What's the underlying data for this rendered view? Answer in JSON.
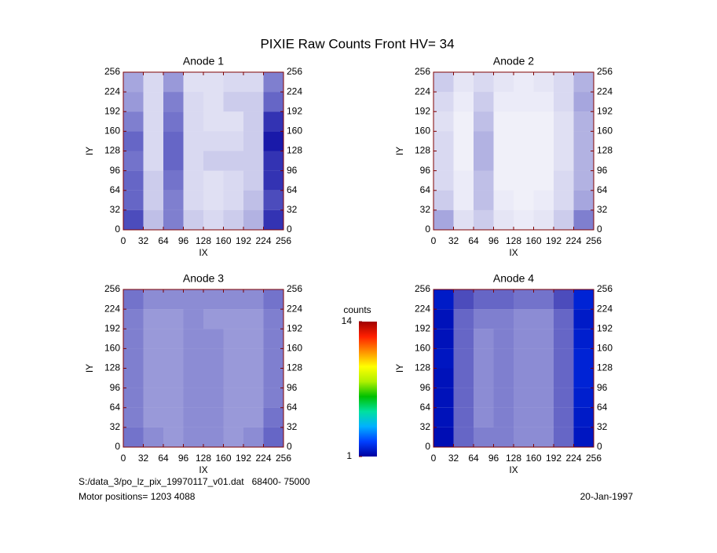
{
  "title": "PIXIE Raw Counts Front HV= 34",
  "chart_data": [
    {
      "type": "heatmap",
      "title": "Anode 1",
      "xlabel": "IX",
      "ylabel": "IY",
      "xlim": [
        0,
        256
      ],
      "ylim": [
        0,
        256
      ],
      "xticks": [
        0,
        32,
        64,
        96,
        128,
        160,
        192,
        224,
        256
      ],
      "yticks": [
        0,
        32,
        64,
        96,
        128,
        160,
        192,
        224,
        256
      ],
      "x_bins": [
        0,
        32,
        64,
        96,
        128,
        160,
        192,
        224,
        256
      ],
      "y_bins": [
        0,
        32,
        64,
        96,
        128,
        160,
        192,
        224,
        256
      ],
      "values": [
        [
          0.7,
          0.25,
          0.5,
          0.2,
          0.15,
          0.2,
          0.3,
          0.8
        ],
        [
          0.6,
          0.2,
          0.5,
          0.15,
          0.12,
          0.15,
          0.25,
          0.7
        ],
        [
          0.6,
          0.2,
          0.55,
          0.15,
          0.12,
          0.15,
          0.2,
          0.8
        ],
        [
          0.55,
          0.15,
          0.6,
          0.15,
          0.2,
          0.2,
          0.2,
          0.8
        ],
        [
          0.6,
          0.15,
          0.6,
          0.15,
          0.15,
          0.15,
          0.2,
          0.9
        ],
        [
          0.5,
          0.15,
          0.55,
          0.15,
          0.12,
          0.12,
          0.2,
          0.8
        ],
        [
          0.4,
          0.15,
          0.5,
          0.15,
          0.12,
          0.2,
          0.2,
          0.6
        ],
        [
          0.35,
          0.15,
          0.4,
          0.12,
          0.12,
          0.15,
          0.15,
          0.5
        ]
      ]
    },
    {
      "type": "heatmap",
      "title": "Anode 2",
      "xlabel": "IX",
      "ylabel": "IY",
      "xlim": [
        0,
        256
      ],
      "ylim": [
        0,
        256
      ],
      "xticks": [
        0,
        32,
        64,
        96,
        128,
        160,
        192,
        224,
        256
      ],
      "yticks": [
        0,
        32,
        64,
        96,
        128,
        160,
        192,
        224,
        256
      ],
      "x_bins": [
        0,
        32,
        64,
        96,
        128,
        160,
        192,
        224,
        256
      ],
      "y_bins": [
        0,
        32,
        64,
        96,
        128,
        160,
        192,
        224,
        256
      ],
      "values": [
        [
          0.35,
          0.12,
          0.2,
          0.1,
          0.08,
          0.1,
          0.2,
          0.5
        ],
        [
          0.2,
          0.08,
          0.25,
          0.08,
          0.06,
          0.08,
          0.15,
          0.35
        ],
        [
          0.15,
          0.08,
          0.25,
          0.06,
          0.06,
          0.06,
          0.15,
          0.3
        ],
        [
          0.15,
          0.06,
          0.3,
          0.06,
          0.06,
          0.06,
          0.12,
          0.3
        ],
        [
          0.15,
          0.06,
          0.3,
          0.06,
          0.06,
          0.06,
          0.12,
          0.3
        ],
        [
          0.12,
          0.06,
          0.25,
          0.06,
          0.06,
          0.06,
          0.12,
          0.3
        ],
        [
          0.15,
          0.08,
          0.2,
          0.08,
          0.08,
          0.08,
          0.15,
          0.35
        ],
        [
          0.2,
          0.1,
          0.15,
          0.1,
          0.08,
          0.1,
          0.15,
          0.3
        ]
      ]
    },
    {
      "type": "heatmap",
      "title": "Anode 3",
      "xlabel": "IX",
      "ylabel": "IY",
      "xlim": [
        0,
        256
      ],
      "ylim": [
        0,
        256
      ],
      "xticks": [
        0,
        32,
        64,
        96,
        128,
        160,
        192,
        224,
        256
      ],
      "yticks": [
        0,
        32,
        64,
        96,
        128,
        160,
        192,
        224,
        256
      ],
      "x_bins": [
        0,
        32,
        64,
        96,
        128,
        160,
        192,
        224,
        256
      ],
      "y_bins": [
        0,
        32,
        64,
        96,
        128,
        160,
        192,
        224,
        256
      ],
      "values": [
        [
          0.55,
          0.45,
          0.4,
          0.45,
          0.45,
          0.4,
          0.45,
          0.6
        ],
        [
          0.5,
          0.4,
          0.4,
          0.45,
          0.45,
          0.4,
          0.4,
          0.55
        ],
        [
          0.5,
          0.4,
          0.4,
          0.45,
          0.45,
          0.4,
          0.4,
          0.5
        ],
        [
          0.5,
          0.4,
          0.4,
          0.45,
          0.45,
          0.4,
          0.4,
          0.5
        ],
        [
          0.5,
          0.4,
          0.4,
          0.45,
          0.45,
          0.4,
          0.4,
          0.5
        ],
        [
          0.5,
          0.4,
          0.4,
          0.45,
          0.45,
          0.4,
          0.4,
          0.5
        ],
        [
          0.5,
          0.4,
          0.4,
          0.45,
          0.4,
          0.4,
          0.4,
          0.5
        ],
        [
          0.55,
          0.45,
          0.45,
          0.45,
          0.45,
          0.45,
          0.45,
          0.55
        ]
      ]
    },
    {
      "type": "heatmap",
      "title": "Anode 4",
      "xlabel": "IX",
      "ylabel": "IY",
      "xlim": [
        0,
        256
      ],
      "ylim": [
        0,
        256
      ],
      "xticks": [
        0,
        32,
        64,
        96,
        128,
        160,
        192,
        224,
        256
      ],
      "yticks": [
        0,
        32,
        64,
        96,
        128,
        160,
        192,
        224,
        256
      ],
      "x_bins": [
        0,
        32,
        64,
        96,
        128,
        160,
        192,
        224,
        256
      ],
      "y_bins": [
        0,
        32,
        64,
        96,
        128,
        160,
        192,
        224,
        256
      ],
      "values": [
        [
          1.3,
          0.6,
          0.5,
          0.5,
          0.45,
          0.45,
          0.6,
          1.5
        ],
        [
          1.4,
          0.6,
          0.45,
          0.5,
          0.45,
          0.45,
          0.6,
          1.6
        ],
        [
          1.4,
          0.6,
          0.45,
          0.5,
          0.45,
          0.45,
          0.6,
          1.7
        ],
        [
          1.4,
          0.6,
          0.45,
          0.5,
          0.45,
          0.45,
          0.6,
          1.8
        ],
        [
          1.5,
          0.6,
          0.45,
          0.5,
          0.45,
          0.45,
          0.6,
          1.8
        ],
        [
          1.4,
          0.6,
          0.45,
          0.5,
          0.45,
          0.45,
          0.6,
          1.7
        ],
        [
          1.4,
          0.6,
          0.5,
          0.5,
          0.45,
          0.45,
          0.6,
          1.6
        ],
        [
          1.6,
          0.7,
          0.6,
          0.6,
          0.55,
          0.55,
          0.7,
          1.8
        ]
      ]
    }
  ],
  "colorbar": {
    "label": "counts",
    "clim": [
      1,
      14
    ],
    "ticks": [
      1,
      14
    ],
    "colormap": [
      "#0000a0",
      "#0040ff",
      "#00b0ff",
      "#00e0a0",
      "#00c000",
      "#b0f000",
      "#ffff00",
      "#ff9000",
      "#ff2000",
      "#a00000"
    ]
  },
  "footer": {
    "file": "S:/data_3/po_lz_pix_19970117_v01.dat   68400- 75000",
    "motor": "Motor positions= 1203 4088",
    "date": "20-Jan-1997"
  }
}
